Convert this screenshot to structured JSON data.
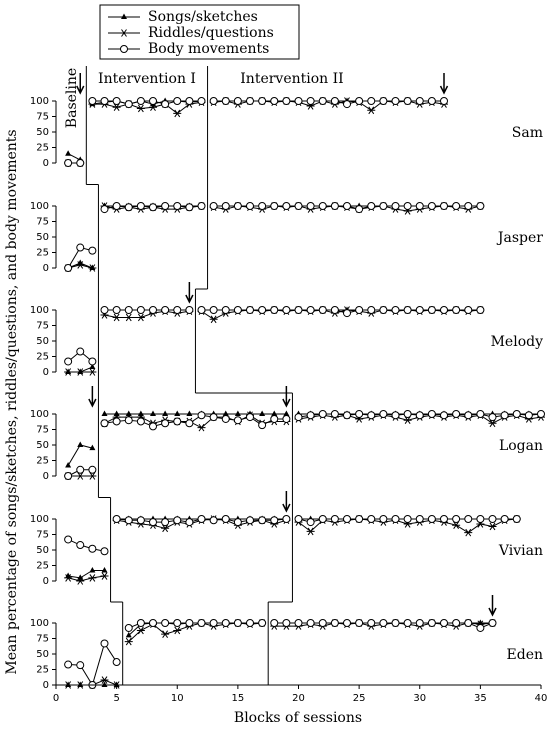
{
  "chart_data": [
    {
      "type": "line",
      "title": "Sam",
      "ylabel": "Mean percentage of songs/sketches, riddles/questions, and body movements",
      "annotations": [
        "Baseline",
        "Intervention I",
        "Intervention II"
      ],
      "legend": "top",
      "xlim": [
        0,
        40
      ],
      "ylim": [
        0,
        100
      ],
      "yticks": [
        0,
        25,
        50,
        75,
        100
      ],
      "phase_changes": [
        2.5,
        12.5
      ],
      "arrows": [
        2,
        32
      ],
      "x": [
        1,
        2,
        3,
        4,
        5,
        6,
        7,
        8,
        9,
        10,
        11,
        12,
        13,
        14,
        15,
        16,
        17,
        18,
        19,
        20,
        21,
        22,
        23,
        24,
        25,
        26,
        27,
        28,
        29,
        30,
        31,
        32
      ],
      "series": [
        {
          "name": "Songs/sketches",
          "color": "#000000",
          "marker": "triangle",
          "values": [
            15,
            5,
            95,
            98,
            100,
            95,
            100,
            95,
            100,
            100,
            98,
            100,
            100,
            100,
            100,
            100,
            100,
            100,
            100,
            100,
            100,
            100,
            100,
            100,
            100,
            100,
            100,
            100,
            100,
            100,
            100,
            100
          ]
        },
        {
          "name": "Riddles/questions",
          "color": "#000000",
          "marker": "asterisk",
          "values": [
            0,
            0,
            95,
            95,
            90,
            95,
            88,
            90,
            95,
            80,
            95,
            98,
            98,
            100,
            95,
            100,
            100,
            98,
            100,
            98,
            92,
            100,
            95,
            100,
            98,
            85,
            100,
            98,
            100,
            95,
            98,
            95
          ]
        },
        {
          "name": "Body movements",
          "color": "#000000",
          "marker": "circle",
          "values": [
            0,
            0,
            100,
            100,
            100,
            95,
            100,
            100,
            95,
            100,
            100,
            100,
            100,
            100,
            100,
            100,
            100,
            100,
            100,
            100,
            100,
            100,
            100,
            95,
            100,
            100,
            100,
            100,
            100,
            100,
            100,
            100
          ]
        }
      ]
    },
    {
      "type": "line",
      "title": "Jasper",
      "xlim": [
        0,
        40
      ],
      "ylim": [
        0,
        100
      ],
      "yticks": [
        0,
        25,
        50,
        75,
        100
      ],
      "phase_changes": [
        3.5,
        12.5
      ],
      "arrows": [],
      "x": [
        1,
        2,
        3,
        4,
        5,
        6,
        7,
        8,
        9,
        10,
        11,
        12,
        13,
        14,
        15,
        16,
        17,
        18,
        19,
        20,
        21,
        22,
        23,
        24,
        25,
        26,
        27,
        28,
        29,
        30,
        31,
        32,
        33,
        34,
        35
      ],
      "series": [
        {
          "name": "Songs/sketches",
          "color": "#000000",
          "marker": "triangle",
          "values": [
            0,
            8,
            0,
            100,
            100,
            100,
            100,
            100,
            100,
            100,
            100,
            100,
            100,
            100,
            100,
            100,
            100,
            100,
            100,
            100,
            100,
            100,
            100,
            100,
            100,
            100,
            100,
            100,
            100,
            100,
            100,
            100,
            100,
            100,
            100
          ]
        },
        {
          "name": "Riddles/questions",
          "color": "#000000",
          "marker": "asterisk",
          "values": [
            0,
            5,
            0,
            100,
            95,
            98,
            95,
            98,
            95,
            95,
            98,
            100,
            98,
            95,
            100,
            98,
            95,
            100,
            98,
            100,
            95,
            98,
            100,
            98,
            95,
            98,
            100,
            95,
            92,
            95,
            98,
            100,
            98,
            95,
            100
          ]
        },
        {
          "name": "Body movements",
          "color": "#000000",
          "marker": "circle",
          "values": [
            0,
            33,
            28,
            95,
            100,
            98,
            100,
            98,
            100,
            100,
            98,
            100,
            100,
            100,
            100,
            100,
            100,
            100,
            100,
            100,
            100,
            100,
            100,
            100,
            95,
            100,
            100,
            100,
            100,
            100,
            100,
            100,
            100,
            100,
            100
          ]
        }
      ]
    },
    {
      "type": "line",
      "title": "Melody",
      "xlim": [
        0,
        40
      ],
      "ylim": [
        0,
        100
      ],
      "yticks": [
        0,
        25,
        50,
        75,
        100
      ],
      "phase_changes": [
        3.5,
        11.5
      ],
      "arrows": [
        11
      ],
      "x": [
        1,
        2,
        3,
        4,
        5,
        6,
        7,
        8,
        9,
        10,
        11,
        12,
        13,
        14,
        15,
        16,
        17,
        18,
        19,
        20,
        21,
        22,
        23,
        24,
        25,
        26,
        27,
        28,
        29,
        30,
        31,
        32,
        33,
        34,
        35
      ],
      "series": [
        {
          "name": "Songs/sketches",
          "color": "#000000",
          "marker": "triangle",
          "values": [
            0,
            0,
            8,
            100,
            100,
            100,
            100,
            100,
            100,
            100,
            100,
            100,
            100,
            100,
            100,
            100,
            100,
            100,
            100,
            100,
            100,
            100,
            100,
            100,
            100,
            100,
            100,
            100,
            100,
            100,
            100,
            100,
            100,
            100,
            100
          ]
        },
        {
          "name": "Riddles/questions",
          "color": "#000000",
          "marker": "asterisk",
          "values": [
            0,
            0,
            0,
            92,
            88,
            88,
            88,
            95,
            98,
            95,
            98,
            98,
            85,
            95,
            98,
            100,
            98,
            100,
            98,
            100,
            98,
            100,
            95,
            100,
            98,
            95,
            100,
            98,
            100,
            98,
            100,
            98,
            100,
            98,
            100
          ]
        },
        {
          "name": "Body movements",
          "color": "#000000",
          "marker": "circle",
          "values": [
            17,
            33,
            17,
            100,
            100,
            100,
            100,
            100,
            100,
            100,
            100,
            100,
            100,
            100,
            100,
            100,
            100,
            100,
            100,
            100,
            100,
            100,
            100,
            95,
            100,
            100,
            100,
            100,
            100,
            100,
            100,
            100,
            100,
            100,
            100
          ]
        }
      ]
    },
    {
      "type": "line",
      "title": "Logan",
      "xlim": [
        0,
        40
      ],
      "ylim": [
        0,
        100
      ],
      "yticks": [
        0,
        25,
        50,
        75,
        100
      ],
      "phase_changes": [
        3.5,
        19.5
      ],
      "arrows": [
        3,
        19
      ],
      "x": [
        1,
        2,
        3,
        4,
        5,
        6,
        7,
        8,
        9,
        10,
        11,
        12,
        13,
        14,
        15,
        16,
        17,
        18,
        19,
        20,
        21,
        22,
        23,
        24,
        25,
        26,
        27,
        28,
        29,
        30,
        31,
        32,
        33,
        34,
        35,
        36,
        37,
        38,
        39,
        40
      ],
      "series": [
        {
          "name": "Songs/sketches",
          "color": "#000000",
          "marker": "triangle",
          "values": [
            17,
            50,
            45,
            100,
            100,
            100,
            100,
            100,
            100,
            100,
            100,
            100,
            100,
            100,
            100,
            100,
            100,
            100,
            100,
            100,
            100,
            100,
            100,
            100,
            100,
            100,
            100,
            100,
            100,
            100,
            100,
            100,
            100,
            100,
            100,
            100,
            100,
            100,
            100,
            100
          ]
        },
        {
          "name": "Riddles/questions",
          "color": "#000000",
          "marker": "asterisk",
          "values": [
            0,
            0,
            0,
            85,
            95,
            95,
            95,
            85,
            90,
            88,
            88,
            78,
            95,
            95,
            88,
            98,
            85,
            88,
            88,
            92,
            95,
            98,
            95,
            98,
            92,
            95,
            98,
            95,
            90,
            95,
            98,
            95,
            98,
            95,
            98,
            85,
            95,
            98,
            92,
            95
          ]
        },
        {
          "name": "Body movements",
          "color": "#000000",
          "marker": "circle",
          "values": [
            0,
            10,
            10,
            85,
            88,
            90,
            88,
            80,
            85,
            88,
            85,
            98,
            95,
            92,
            90,
            95,
            82,
            92,
            92,
            95,
            98,
            100,
            100,
            98,
            100,
            98,
            100,
            98,
            100,
            98,
            100,
            98,
            100,
            98,
            100,
            95,
            98,
            100,
            98,
            100
          ]
        }
      ]
    },
    {
      "type": "line",
      "title": "Vivian",
      "xlim": [
        0,
        40
      ],
      "ylim": [
        0,
        100
      ],
      "yticks": [
        0,
        25,
        50,
        75,
        100
      ],
      "phase_changes": [
        4.5,
        19.5
      ],
      "arrows": [
        19
      ],
      "x": [
        1,
        2,
        3,
        4,
        5,
        6,
        7,
        8,
        9,
        10,
        11,
        12,
        13,
        14,
        15,
        16,
        17,
        18,
        19,
        20,
        21,
        22,
        23,
        24,
        25,
        26,
        27,
        28,
        29,
        30,
        31,
        32,
        33,
        34,
        35,
        36,
        37,
        38
      ],
      "series": [
        {
          "name": "Songs/sketches",
          "color": "#000000",
          "marker": "triangle",
          "values": [
            8,
            5,
            17,
            17,
            100,
            100,
            100,
            100,
            100,
            100,
            100,
            100,
            100,
            100,
            100,
            100,
            100,
            100,
            100,
            100,
            100,
            100,
            100,
            100,
            100,
            100,
            100,
            100,
            100,
            100,
            100,
            100,
            100,
            100,
            100,
            100,
            100,
            100
          ]
        },
        {
          "name": "Riddles/questions",
          "color": "#000000",
          "marker": "asterisk",
          "values": [
            5,
            0,
            5,
            8,
            98,
            95,
            92,
            90,
            85,
            95,
            92,
            98,
            100,
            98,
            90,
            95,
            98,
            92,
            98,
            95,
            80,
            98,
            95,
            98,
            100,
            98,
            95,
            98,
            92,
            95,
            98,
            95,
            90,
            78,
            92,
            88,
            98,
            100
          ]
        },
        {
          "name": "Body movements",
          "color": "#000000",
          "marker": "circle",
          "values": [
            67,
            58,
            52,
            48,
            100,
            98,
            98,
            95,
            95,
            98,
            95,
            100,
            98,
            100,
            95,
            98,
            98,
            98,
            100,
            100,
            95,
            100,
            100,
            100,
            100,
            100,
            100,
            100,
            100,
            100,
            100,
            100,
            100,
            100,
            100,
            100,
            100,
            100
          ]
        }
      ]
    },
    {
      "type": "line",
      "title": "Eden",
      "xlabel": "Blocks of sessions",
      "xlim": [
        0,
        40
      ],
      "xticks": [
        0,
        5,
        10,
        15,
        20,
        25,
        30,
        35,
        40
      ],
      "ylim": [
        0,
        100
      ],
      "yticks": [
        0,
        25,
        50,
        75,
        100
      ],
      "phase_changes": [
        5.5,
        17.5
      ],
      "arrows": [
        36
      ],
      "x": [
        1,
        2,
        3,
        4,
        5,
        6,
        7,
        8,
        9,
        10,
        11,
        12,
        13,
        14,
        15,
        16,
        17,
        18,
        19,
        20,
        21,
        22,
        23,
        24,
        25,
        26,
        27,
        28,
        29,
        30,
        31,
        32,
        33,
        34,
        35,
        36
      ],
      "series": [
        {
          "name": "Songs/sketches",
          "color": "#000000",
          "marker": "triangle",
          "values": [
            0,
            0,
            0,
            0,
            0,
            80,
            98,
            100,
            100,
            98,
            100,
            100,
            100,
            100,
            100,
            100,
            100,
            100,
            100,
            100,
            100,
            100,
            100,
            100,
            100,
            100,
            100,
            100,
            100,
            100,
            100,
            100,
            100,
            100,
            100,
            100
          ]
        },
        {
          "name": "Riddles/questions",
          "color": "#000000",
          "marker": "asterisk",
          "values": [
            0,
            0,
            0,
            8,
            0,
            70,
            88,
            98,
            82,
            88,
            95,
            100,
            95,
            98,
            100,
            98,
            100,
            95,
            95,
            95,
            98,
            95,
            100,
            98,
            100,
            95,
            98,
            100,
            98,
            95,
            100,
            98,
            95,
            100,
            98,
            100
          ]
        },
        {
          "name": "Body movements",
          "color": "#000000",
          "marker": "circle",
          "values": [
            33,
            32,
            0,
            67,
            37,
            92,
            100,
            100,
            100,
            100,
            100,
            100,
            100,
            100,
            100,
            100,
            100,
            100,
            100,
            100,
            100,
            100,
            100,
            100,
            100,
            100,
            100,
            100,
            100,
            100,
            100,
            100,
            100,
            100,
            92,
            100
          ]
        }
      ]
    }
  ]
}
